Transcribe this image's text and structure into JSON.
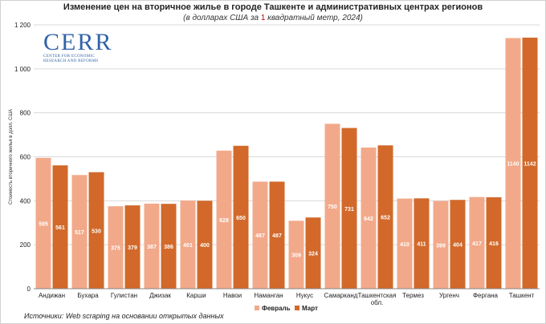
{
  "header": {
    "title": "Изменение цен на вторичное жилье в городе Ташкенте и административных центрах регионов",
    "subtitle_before": "(в долларах США за ",
    "subtitle_num": "1",
    "subtitle_after": " квадратный метр, 2024)"
  },
  "logo": {
    "word": "CERR",
    "line1": "CENTER FOR ECONOMIC",
    "line2": "RESEARCH AND REFORMS"
  },
  "footer": {
    "source": "Источники: Web scraping на основании открытых данных"
  },
  "colors": {
    "feb": "#f2a98a",
    "mar": "#d2692a",
    "grid": "#d9d9d9",
    "axis": "#888888",
    "label": "#ffffff"
  },
  "chart_data": {
    "type": "bar",
    "title": "Изменение цен на вторичное жилье в городе Ташкенте и административных центрах регионов",
    "ylabel": "Стоимость вторичного жилья в долл. США",
    "xlabel": "",
    "ylim": [
      0,
      1200
    ],
    "yticks": [
      0,
      200,
      400,
      600,
      800,
      1000,
      1200
    ],
    "ytick_labels": [
      "0",
      "200",
      "400",
      "600",
      "800",
      "1 000",
      "1 200"
    ],
    "grid": true,
    "legend_position": "bottom",
    "categories": [
      [
        "Андижан"
      ],
      [
        "Бухара"
      ],
      [
        "Гулистан"
      ],
      [
        "Джизак"
      ],
      [
        "Карши"
      ],
      [
        "Навои"
      ],
      [
        "Наманган"
      ],
      [
        "Нукус"
      ],
      [
        "Самарканд"
      ],
      [
        "Ташкентская",
        "обл."
      ],
      [
        "Термез"
      ],
      [
        "Ургенч"
      ],
      [
        "Фергана"
      ],
      [
        "Ташкент"
      ]
    ],
    "series": [
      {
        "name": "Февраль",
        "color": "#f2a98a",
        "values": [
          595,
          517,
          375,
          387,
          401,
          628,
          487,
          309,
          750,
          642,
          410,
          399,
          417,
          1140
        ],
        "labels": [
          "595",
          "517",
          "375",
          "387",
          "401",
          "628",
          "487",
          "309",
          "750",
          "642",
          "410",
          "399",
          "417",
          "1140"
        ]
      },
      {
        "name": "Март",
        "color": "#d2692a",
        "values": [
          561,
          530,
          379,
          386,
          400,
          650,
          487,
          324,
          731,
          652,
          411,
          404,
          416,
          1142
        ],
        "labels": [
          "561",
          "530",
          "379",
          "386",
          "400",
          "650",
          "487",
          "324",
          "731",
          "652",
          "411",
          "404",
          "416",
          "1142"
        ]
      }
    ]
  }
}
